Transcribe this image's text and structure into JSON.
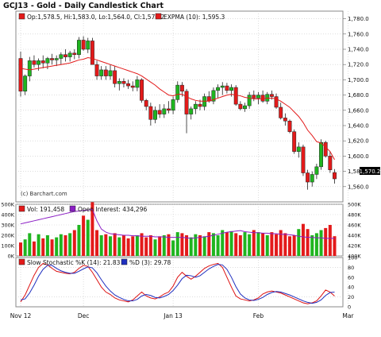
{
  "chart_data": [
    {
      "panel": "price",
      "type": "candlestick",
      "title": "GCJ13 - Gold - Daily Candlestick Chart",
      "legend": {
        "ohlc_text": "Op:1,578.5, Hi:1,583.0, Lo:1,564.0, Cl:1,570.2",
        "ema_text": "EXPMA (10): 1,595.3"
      },
      "watermark": "(c) Barchart.com",
      "last_price_label": "1,570.2",
      "ylim": [
        1540,
        1790
      ],
      "y_ticks": [
        1560,
        1580,
        1600,
        1620,
        1640,
        1660,
        1680,
        1700,
        1720,
        1740,
        1760,
        1780
      ],
      "y_tick_labels": [
        "1,560.0",
        "1,580.0",
        "1,600.0",
        "1,620.0",
        "1,640.0",
        "1,660.0",
        "1,680.0",
        "1,700.0",
        "1,720.0",
        "1,740.0",
        "1,760.0",
        "1,780.0"
      ],
      "x_labels": [
        {
          "label": "Nov 12",
          "index": 0
        },
        {
          "label": "Dec",
          "index": 14
        },
        {
          "label": "Jan 13",
          "index": 34
        },
        {
          "label": "Feb",
          "index": 53
        },
        {
          "label": "Mar",
          "index": 73
        }
      ],
      "candles": [
        [
          1728,
          1737,
          1678,
          1685
        ],
        [
          1685,
          1707,
          1680,
          1705
        ],
        [
          1705,
          1730,
          1698,
          1725
        ],
        [
          1725,
          1732,
          1716,
          1720
        ],
        [
          1720,
          1728,
          1712,
          1725
        ],
        [
          1725,
          1732,
          1715,
          1722
        ],
        [
          1722,
          1730,
          1714,
          1728
        ],
        [
          1728,
          1734,
          1720,
          1726
        ],
        [
          1726,
          1732,
          1718,
          1728
        ],
        [
          1728,
          1736,
          1720,
          1733
        ],
        [
          1733,
          1740,
          1724,
          1730
        ],
        [
          1730,
          1738,
          1724,
          1735
        ],
        [
          1735,
          1740,
          1727,
          1733
        ],
        [
          1733,
          1756,
          1728,
          1752
        ],
        [
          1752,
          1757,
          1738,
          1740
        ],
        [
          1740,
          1755,
          1735,
          1751
        ],
        [
          1751,
          1755,
          1722,
          1720
        ],
        [
          1720,
          1725,
          1700,
          1705
        ],
        [
          1705,
          1718,
          1700,
          1713
        ],
        [
          1713,
          1718,
          1700,
          1705
        ],
        [
          1705,
          1720,
          1700,
          1712
        ],
        [
          1712,
          1718,
          1690,
          1695
        ],
        [
          1695,
          1702,
          1686,
          1698
        ],
        [
          1698,
          1702,
          1690,
          1695
        ],
        [
          1695,
          1700,
          1688,
          1692
        ],
        [
          1692,
          1698,
          1685,
          1690
        ],
        [
          1690,
          1705,
          1685,
          1700
        ],
        [
          1700,
          1702,
          1670,
          1673
        ],
        [
          1673,
          1675,
          1660,
          1665
        ],
        [
          1665,
          1670,
          1640,
          1648
        ],
        [
          1648,
          1665,
          1643,
          1660
        ],
        [
          1660,
          1668,
          1650,
          1655
        ],
        [
          1655,
          1668,
          1650,
          1662
        ],
        [
          1662,
          1672,
          1656,
          1660
        ],
        [
          1660,
          1678,
          1655,
          1674
        ],
        [
          1674,
          1698,
          1670,
          1693
        ],
        [
          1693,
          1697,
          1678,
          1685
        ],
        [
          1685,
          1688,
          1630,
          1655
        ],
        [
          1655,
          1665,
          1648,
          1662
        ],
        [
          1662,
          1672,
          1655,
          1668
        ],
        [
          1668,
          1674,
          1660,
          1665
        ],
        [
          1665,
          1682,
          1660,
          1678
        ],
        [
          1678,
          1685,
          1670,
          1672
        ],
        [
          1672,
          1690,
          1668,
          1686
        ],
        [
          1686,
          1694,
          1676,
          1690
        ],
        [
          1690,
          1697,
          1680,
          1692
        ],
        [
          1692,
          1696,
          1682,
          1686
        ],
        [
          1686,
          1694,
          1678,
          1690
        ],
        [
          1690,
          1693,
          1666,
          1668
        ],
        [
          1668,
          1672,
          1660,
          1662
        ],
        [
          1662,
          1670,
          1658,
          1666
        ],
        [
          1666,
          1684,
          1662,
          1680
        ],
        [
          1680,
          1686,
          1672,
          1676
        ],
        [
          1676,
          1684,
          1668,
          1680
        ],
        [
          1680,
          1686,
          1670,
          1672
        ],
        [
          1672,
          1684,
          1668,
          1681
        ],
        [
          1681,
          1686,
          1674,
          1678
        ],
        [
          1678,
          1682,
          1662,
          1664
        ],
        [
          1664,
          1670,
          1648,
          1650
        ],
        [
          1650,
          1656,
          1640,
          1646
        ],
        [
          1646,
          1648,
          1630,
          1632
        ],
        [
          1632,
          1635,
          1603,
          1606
        ],
        [
          1606,
          1618,
          1598,
          1612
        ],
        [
          1612,
          1615,
          1574,
          1578
        ],
        [
          1578,
          1582,
          1556,
          1566
        ],
        [
          1566,
          1580,
          1560,
          1576
        ],
        [
          1576,
          1590,
          1570,
          1586
        ],
        [
          1586,
          1622,
          1582,
          1618
        ],
        [
          1618,
          1620,
          1598,
          1600
        ],
        [
          1600,
          1606,
          1578,
          1582
        ],
        [
          1578.5,
          1583,
          1564,
          1570.2
        ]
      ],
      "ema": [
        1715,
        1714,
        1713,
        1714,
        1715,
        1716,
        1717,
        1718,
        1719,
        1720,
        1721,
        1722,
        1724,
        1726,
        1727,
        1729,
        1728,
        1726,
        1724,
        1722,
        1720,
        1718,
        1716,
        1714,
        1712,
        1710,
        1708,
        1705,
        1701,
        1697,
        1693,
        1688,
        1684,
        1680,
        1679,
        1681,
        1681,
        1678,
        1675,
        1673,
        1672,
        1672,
        1672,
        1674,
        1676,
        1678,
        1680,
        1681,
        1680,
        1679,
        1677,
        1676,
        1675,
        1675,
        1675,
        1676,
        1676,
        1675,
        1672,
        1668,
        1664,
        1658,
        1652,
        1644,
        1634,
        1627,
        1619,
        1617,
        1612,
        1606,
        1595.3
      ]
    },
    {
      "panel": "volume",
      "type": "bar",
      "legend": {
        "volume_text": "Vol: 191,458",
        "oi_text": "Open Interest: 434,296"
      },
      "left_ticks": [
        "500K",
        "400K",
        "300K",
        "200K",
        "100K",
        "0K"
      ],
      "right_ticks": [
        "500K",
        "480K",
        "460K",
        "440K",
        "420K",
        "400K"
      ],
      "volume": [
        130,
        160,
        220,
        140,
        210,
        170,
        200,
        160,
        180,
        210,
        200,
        220,
        250,
        300,
        390,
        350,
        520,
        250,
        200,
        210,
        190,
        220,
        180,
        200,
        170,
        190,
        200,
        220,
        180,
        200,
        160,
        190,
        200,
        210,
        150,
        230,
        220,
        200,
        180,
        210,
        200,
        190,
        230,
        220,
        200,
        250,
        230,
        240,
        220,
        200,
        230,
        210,
        250,
        230,
        220,
        200,
        230,
        210,
        250,
        220,
        190,
        200,
        260,
        310,
        260,
        200,
        220,
        250,
        270,
        300,
        191
      ],
      "open_interest": [
        462,
        464,
        466,
        468,
        470,
        472,
        474,
        476,
        478,
        480,
        482,
        484,
        486,
        487,
        488,
        489,
        490,
        468,
        452,
        446,
        443,
        442,
        441,
        440,
        440,
        439,
        439,
        438,
        438,
        438,
        437,
        437,
        437,
        436,
        436,
        436,
        436,
        435,
        434,
        435,
        436,
        437,
        438,
        440,
        442,
        444,
        446,
        447,
        448,
        449,
        447,
        446,
        445,
        445,
        444,
        444,
        443,
        443,
        442,
        442,
        441,
        440,
        438,
        437,
        436,
        436,
        435,
        435,
        434,
        434,
        434
      ]
    },
    {
      "panel": "stochastic",
      "type": "line",
      "legend": {
        "k_text": "Slow Stochastic %K (14): 21.83",
        "d_text": "%D (3): 29.78"
      },
      "right_ticks": [
        "100",
        "80",
        "60",
        "40",
        "20",
        "0"
      ],
      "series": [
        {
          "name": "Slow Stochastic %K (14)",
          "color": "#dd1111",
          "values": [
            10,
            24,
            44,
            64,
            80,
            88,
            85,
            78,
            72,
            70,
            68,
            67,
            70,
            78,
            84,
            82,
            70,
            55,
            40,
            30,
            25,
            18,
            14,
            12,
            10,
            14,
            22,
            30,
            22,
            18,
            16,
            20,
            26,
            30,
            42,
            60,
            70,
            62,
            56,
            62,
            70,
            78,
            83,
            86,
            88,
            80,
            60,
            40,
            22,
            16,
            14,
            12,
            14,
            18,
            26,
            30,
            32,
            30,
            28,
            24,
            20,
            16,
            12,
            8,
            6,
            8,
            12,
            22,
            34,
            30,
            21.83
          ]
        },
        {
          "name": "%D (3)",
          "color": "#1f2fbf",
          "values": [
            14,
            16,
            28,
            44,
            62,
            76,
            84,
            84,
            78,
            73,
            70,
            68,
            68,
            72,
            77,
            81,
            79,
            69,
            55,
            42,
            32,
            24,
            19,
            15,
            12,
            12,
            15,
            22,
            25,
            23,
            19,
            18,
            21,
            25,
            33,
            44,
            57,
            64,
            63,
            60,
            63,
            70,
            77,
            82,
            86,
            85,
            76,
            60,
            41,
            26,
            18,
            14,
            13,
            15,
            19,
            25,
            29,
            31,
            30,
            27,
            24,
            20,
            16,
            12,
            9,
            7,
            9,
            14,
            23,
            29,
            29.78
          ]
        }
      ]
    }
  ],
  "colors": {
    "up": "#1fb51f",
    "down": "#e31a1a",
    "ema": "#e31a1a",
    "oi": "#8b1ec4",
    "k": "#dd1111",
    "d": "#1f2fbf",
    "grid": "#c9c9c9",
    "frame": "#888888"
  }
}
